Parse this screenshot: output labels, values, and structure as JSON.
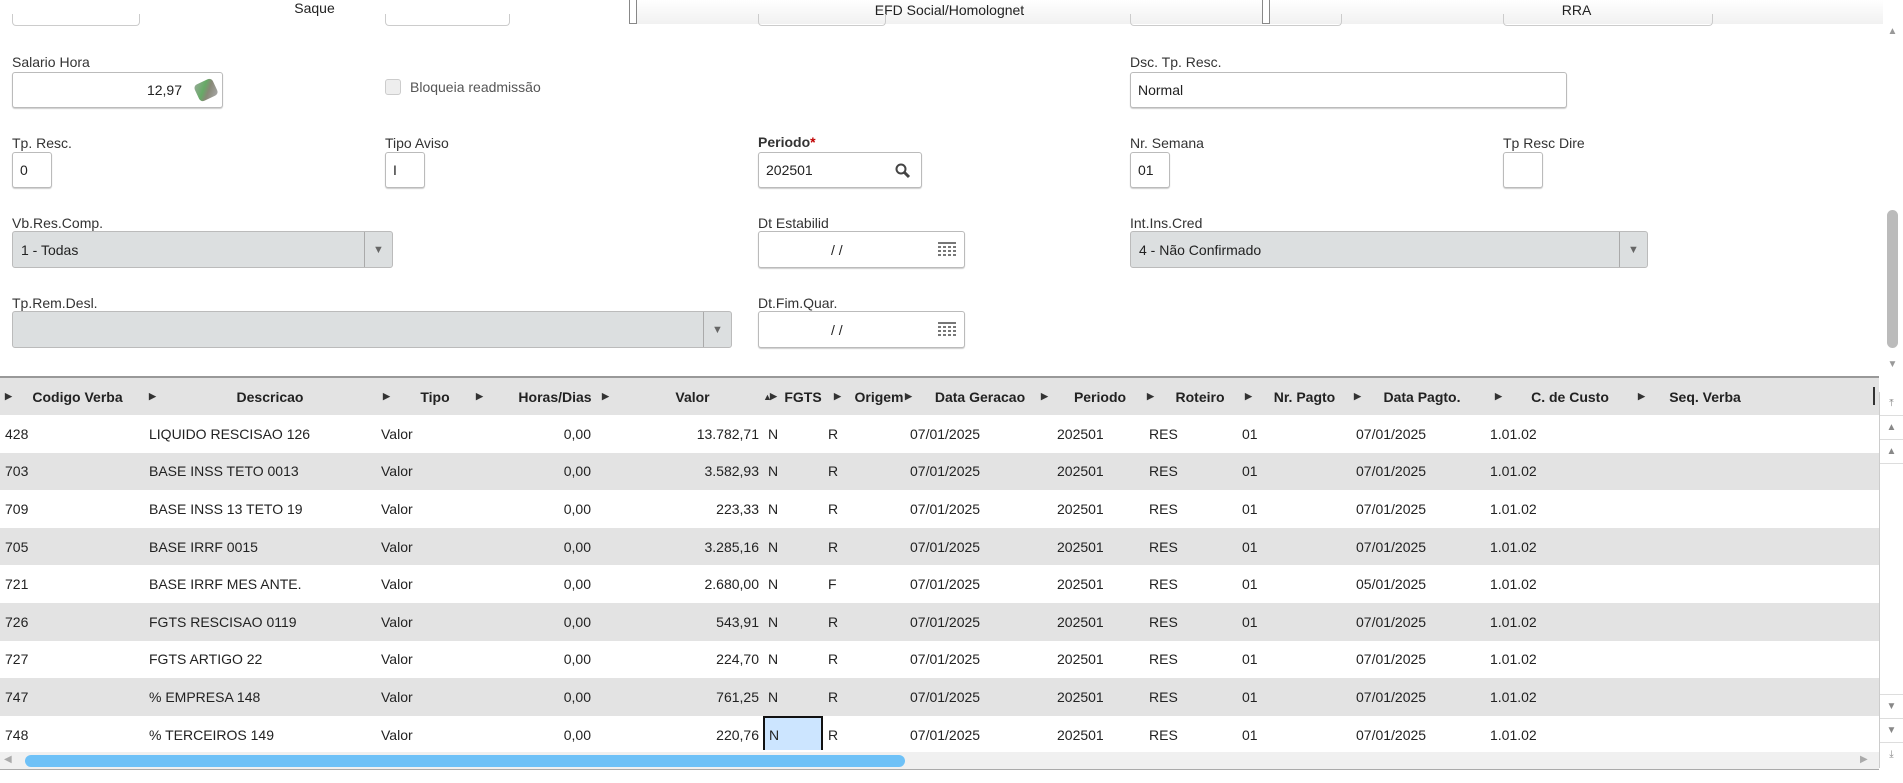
{
  "tabs": [
    {
      "label": "Saque"
    },
    {
      "label": "EFD Social/Homolognet"
    },
    {
      "label": "RRA"
    }
  ],
  "form": {
    "salario_hora": {
      "label": "Salario Hora",
      "value": "12,97",
      "icon": "coins-icon"
    },
    "bloqueia": {
      "label": "Bloqueia readmissão",
      "checked": false
    },
    "dsc_tp_resc": {
      "label": "Dsc. Tp. Resc.",
      "value": "Normal"
    },
    "tp_resc": {
      "label": "Tp. Resc.",
      "value": "0"
    },
    "tipo_aviso": {
      "label": "Tipo Aviso",
      "value": "I"
    },
    "periodo": {
      "label": "Periodo",
      "required": "*",
      "value": "202501",
      "icon": "search-icon"
    },
    "nr_semana": {
      "label": "Nr. Semana",
      "value": "01"
    },
    "tp_resc_dire": {
      "label": "Tp Resc Dire",
      "value": ""
    },
    "vb_res_comp": {
      "label": "Vb.Res.Comp.",
      "value": "1 - Todas"
    },
    "dt_estabilid": {
      "label": "Dt Estabilid",
      "value": "/ /",
      "icon": "calendar-icon"
    },
    "int_ins_cred": {
      "label": "Int.Ins.Cred",
      "value": "4 - Não Confirmado"
    },
    "tp_rem_desl": {
      "label": "Tp.Rem.Desl.",
      "value": ""
    },
    "dt_fim_quar": {
      "label": "Dt.Fim.Quar.",
      "value": "/ /",
      "icon": "calendar-icon"
    }
  },
  "grid": {
    "columns": [
      "Codigo Verba",
      "Descricao",
      "Tipo",
      "Horas/Dias",
      "Valor",
      "FGTS",
      "Origem",
      "Data Geracao",
      "Periodo",
      "Roteiro",
      "Nr. Pagto",
      "Data Pagto.",
      "C. de Custo",
      "Seq. Verba"
    ],
    "sorted_column": "Valor",
    "rows": [
      [
        "428",
        "LIQUIDO RESCISAO 126",
        "Valor",
        "0,00",
        "13.782,71",
        "N",
        "R",
        "07/01/2025",
        "202501",
        "RES",
        "01",
        "07/01/2025",
        "1.01.02",
        ""
      ],
      [
        "703",
        "BASE INSS TETO 0013",
        "Valor",
        "0,00",
        "3.582,93",
        "N",
        "R",
        "07/01/2025",
        "202501",
        "RES",
        "01",
        "07/01/2025",
        "1.01.02",
        ""
      ],
      [
        "709",
        "BASE INSS 13 TETO 19",
        "Valor",
        "0,00",
        "223,33",
        "N",
        "R",
        "07/01/2025",
        "202501",
        "RES",
        "01",
        "07/01/2025",
        "1.01.02",
        ""
      ],
      [
        "705",
        "BASE IRRF 0015",
        "Valor",
        "0,00",
        "3.285,16",
        "N",
        "R",
        "07/01/2025",
        "202501",
        "RES",
        "01",
        "07/01/2025",
        "1.01.02",
        ""
      ],
      [
        "721",
        "BASE IRRF MES ANTE.",
        "Valor",
        "0,00",
        "2.680,00",
        "N",
        "F",
        "07/01/2025",
        "202501",
        "RES",
        "01",
        "05/01/2025",
        "1.01.02",
        ""
      ],
      [
        "726",
        "FGTS RESCISAO 0119",
        "Valor",
        "0,00",
        "543,91",
        "N",
        "R",
        "07/01/2025",
        "202501",
        "RES",
        "01",
        "07/01/2025",
        "1.01.02",
        ""
      ],
      [
        "727",
        "FGTS ARTIGO 22",
        "Valor",
        "0,00",
        "224,70",
        "N",
        "R",
        "07/01/2025",
        "202501",
        "RES",
        "01",
        "07/01/2025",
        "1.01.02",
        ""
      ],
      [
        "747",
        "% EMPRESA  148",
        "Valor",
        "0,00",
        "761,25",
        "N",
        "R",
        "07/01/2025",
        "202501",
        "RES",
        "01",
        "07/01/2025",
        "1.01.02",
        ""
      ],
      [
        "748",
        "% TERCEIROS 149",
        "Valor",
        "0,00",
        "220,76",
        "N",
        "R",
        "07/01/2025",
        "202501",
        "RES",
        "01",
        "07/01/2025",
        "1.01.02",
        ""
      ]
    ],
    "selected_cell": {
      "row": 8,
      "column": "FGTS"
    },
    "colors": {
      "alt_row": "#e3e3e3",
      "selected_cell": "#cce5ff",
      "scroll_thumb": "#6ec1f7",
      "required": "#c00000"
    }
  }
}
